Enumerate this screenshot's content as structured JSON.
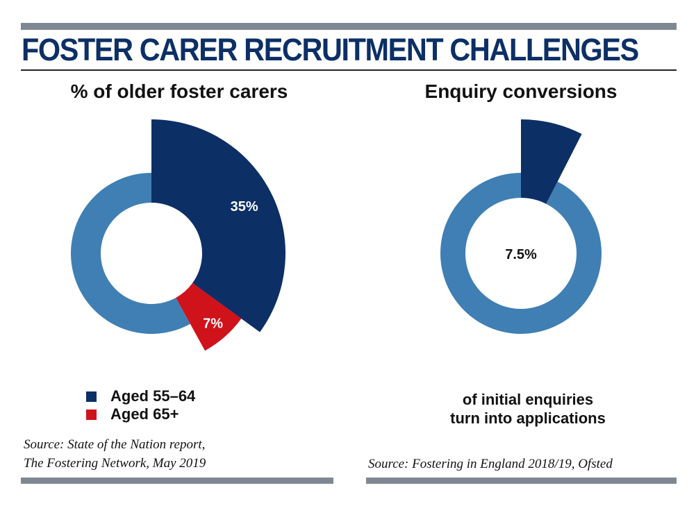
{
  "title": "FOSTER CARER RECRUITMENT CHALLENGES",
  "colors": {
    "navy": "#0c2f66",
    "light_blue": "#3f7fb4",
    "red": "#d0121b",
    "rule_gray": "#7d8892"
  },
  "chart_data": [
    {
      "type": "pie",
      "title": "% of older foster carers",
      "slices": [
        {
          "name": "Aged 55–64",
          "value": 35,
          "label": "35%",
          "color": "#0c2f66"
        },
        {
          "name": "Aged 65+",
          "value": 7,
          "label": "7%",
          "color": "#d0121b"
        },
        {
          "name": "",
          "value": 58,
          "label": "",
          "color": "#3f7fb4"
        }
      ],
      "legend": [
        "Aged 55–64",
        "Aged 65+"
      ],
      "legend_placement": "bottom-left",
      "source": [
        "Source: State of the Nation report,",
        "The Fostering Network, May 2019"
      ]
    },
    {
      "type": "pie",
      "title": "Enquiry conversions",
      "slices": [
        {
          "name": "",
          "value": 7.5,
          "label": "",
          "color": "#0c2f66"
        },
        {
          "name": "",
          "value": 92.5,
          "label": "",
          "color": "#3f7fb4"
        }
      ],
      "center_label": "7.5%",
      "caption": [
        "of initial enquiries",
        "turn into applications"
      ],
      "source": "Source: Fostering in England 2018/19, Ofsted"
    }
  ]
}
